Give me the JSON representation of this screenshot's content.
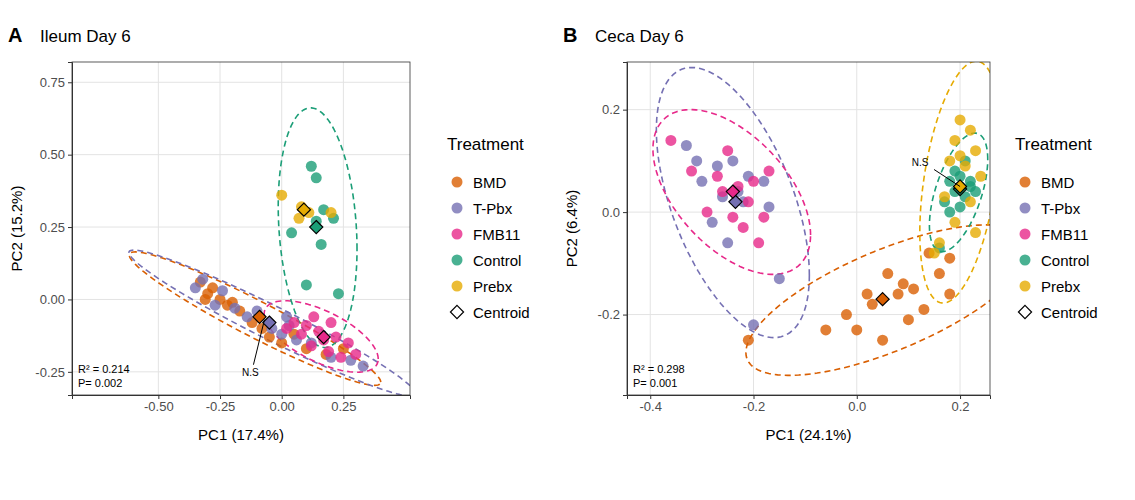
{
  "chart_data": [
    {
      "type": "scatter",
      "panel": "A",
      "title": "Ileum Day 6",
      "x_label": "PC1 (17.4%)",
      "y_label": "PC2 (15.2%)",
      "xlim": [
        -0.85,
        0.52
      ],
      "ylim": [
        -0.33,
        0.82
      ],
      "xticks": [
        {
          "value": -0.5,
          "label": "-0.50"
        },
        -0.25,
        {
          "value": 0,
          "label": "0.00"
        },
        0.25
      ],
      "yticks": [
        -0.25,
        {
          "value": 0,
          "label": "0.00"
        },
        0.25,
        {
          "value": 0.5,
          "label": "0.50"
        },
        0.75
      ],
      "grid": true,
      "legend_title": "Treatment",
      "series": [
        {
          "name": "BMD",
          "color": "#D95F02",
          "x": [
            -0.33,
            -0.3,
            -0.28,
            -0.25,
            -0.22,
            -0.2,
            -0.17,
            -0.12,
            -0.08,
            -0.05,
            0.0,
            0.05,
            0.1,
            0.18,
            0.25,
            -0.31
          ],
          "values": [
            0.06,
            0.02,
            0.04,
            0.0,
            -0.02,
            -0.01,
            -0.04,
            -0.08,
            -0.1,
            -0.13,
            -0.15,
            -0.12,
            -0.17,
            -0.19,
            -0.17,
            0.0
          ]
        },
        {
          "name": "T-Pbx",
          "color": "#7570B3",
          "x": [
            -0.35,
            -0.32,
            -0.27,
            -0.24,
            -0.19,
            -0.14,
            -0.1,
            -0.04,
            0.0,
            0.03,
            0.06,
            0.12,
            0.2,
            0.28,
            0.33,
            0.02
          ],
          "values": [
            0.04,
            0.07,
            -0.02,
            0.03,
            -0.03,
            -0.06,
            -0.04,
            -0.1,
            -0.12,
            -0.09,
            -0.14,
            -0.15,
            -0.2,
            -0.21,
            -0.23,
            -0.06
          ]
        },
        {
          "name": "FMB11",
          "color": "#E7298A",
          "x": [
            0.02,
            0.05,
            0.08,
            0.1,
            0.12,
            0.15,
            0.17,
            0.19,
            0.22,
            0.24,
            0.27,
            0.3,
            0.13,
            0.2
          ],
          "values": [
            -0.1,
            -0.08,
            -0.12,
            -0.09,
            -0.16,
            -0.11,
            -0.14,
            -0.18,
            -0.13,
            -0.2,
            -0.15,
            -0.19,
            -0.06,
            -0.08
          ]
        },
        {
          "name": "Control",
          "color": "#1B9E77",
          "x": [
            0.12,
            0.14,
            0.17,
            0.21,
            0.04,
            0.1,
            0.23,
            0.14,
            0.16
          ],
          "values": [
            0.46,
            0.42,
            0.31,
            0.28,
            0.23,
            0.05,
            0.02,
            0.27,
            0.19
          ]
        },
        {
          "name": "Prebx",
          "color": "#E6AB02",
          "x": [
            0.0,
            0.08,
            0.11,
            0.2,
            0.07
          ],
          "values": [
            0.36,
            0.32,
            0.3,
            0.3,
            0.28
          ]
        },
        {
          "name": "Centroid",
          "marker": "diamond",
          "colors": [
            "#D95F02",
            "#7570B3",
            "#E7298A",
            "#1B9E77",
            "#E6AB02"
          ],
          "x": [
            -0.09,
            -0.05,
            0.17,
            0.14,
            0.09
          ],
          "values": [
            -0.06,
            -0.08,
            -0.13,
            0.25,
            0.31
          ]
        }
      ],
      "annotations": [
        {
          "text": "N.S",
          "x": -0.07,
          "y": -0.07
        }
      ],
      "stats": [
        "R² = 0.214",
        "P= 0.002"
      ]
    },
    {
      "type": "scatter",
      "panel": "B",
      "title": "Ceca Day 6",
      "x_label": "PC1 (24.1%)",
      "y_label": "PC2 (6.4%)",
      "xlim": [
        -0.445,
        0.258
      ],
      "ylim": [
        -0.357,
        0.293
      ],
      "xticks": [
        -0.4,
        -0.2,
        {
          "value": 0,
          "label": "0.0"
        },
        0.2
      ],
      "yticks": [
        -0.2,
        {
          "value": 0,
          "label": "0.0"
        },
        0.2
      ],
      "grid": true,
      "legend_title": "Treatment",
      "series": [
        {
          "name": "BMD",
          "color": "#D95F02",
          "x": [
            -0.21,
            -0.06,
            -0.02,
            0.0,
            0.03,
            0.05,
            0.06,
            0.08,
            0.09,
            0.1,
            0.11,
            0.13,
            0.14,
            0.16,
            0.18,
            0.18,
            0.02
          ],
          "values": [
            -0.25,
            -0.23,
            -0.2,
            -0.23,
            -0.18,
            -0.25,
            -0.12,
            -0.16,
            -0.14,
            -0.21,
            -0.15,
            -0.19,
            -0.08,
            -0.12,
            -0.09,
            -0.16,
            -0.16
          ]
        },
        {
          "name": "T-Pbx",
          "color": "#7570B3",
          "x": [
            -0.33,
            -0.31,
            -0.3,
            -0.28,
            -0.27,
            -0.26,
            -0.25,
            -0.23,
            -0.22,
            -0.21,
            -0.2,
            -0.18,
            -0.17,
            -0.15,
            -0.24
          ],
          "values": [
            0.13,
            0.1,
            0.06,
            -0.02,
            0.09,
            0.03,
            -0.06,
            0.04,
            0.02,
            0.07,
            -0.22,
            0.06,
            0.01,
            -0.13,
            0.1
          ]
        },
        {
          "name": "FMB11",
          "color": "#E7298A",
          "x": [
            -0.36,
            -0.32,
            -0.29,
            -0.27,
            -0.25,
            -0.23,
            -0.21,
            -0.19,
            -0.18,
            -0.17,
            -0.22,
            -0.26,
            -0.2,
            -0.24
          ],
          "values": [
            0.14,
            0.08,
            0.0,
            0.07,
            0.12,
            0.05,
            0.02,
            -0.06,
            -0.01,
            0.08,
            -0.03,
            0.04,
            0.06,
            -0.01
          ]
        },
        {
          "name": "Control",
          "color": "#1B9E77",
          "x": [
            0.17,
            0.18,
            0.19,
            0.2,
            0.21,
            0.22,
            0.19,
            0.2,
            0.21,
            0.18,
            0.22,
            0.16,
            0.23,
            0.2
          ],
          "values": [
            0.02,
            0.06,
            0.04,
            0.07,
            0.03,
            0.05,
            0.08,
            0.01,
            0.1,
            0.0,
            0.06,
            -0.07,
            0.04,
            0.05
          ]
        },
        {
          "name": "Prebx",
          "color": "#E6AB02",
          "x": [
            0.2,
            0.22,
            0.19,
            0.23,
            0.18,
            0.21,
            0.24,
            0.17,
            0.22,
            0.19,
            0.16,
            0.23,
            0.2,
            0.15
          ],
          "values": [
            0.18,
            0.16,
            0.14,
            0.12,
            0.1,
            0.09,
            0.07,
            0.03,
            0.02,
            -0.02,
            -0.06,
            -0.04,
            0.11,
            -0.08
          ]
        },
        {
          "name": "Centroid",
          "marker": "diamond",
          "colors": [
            "#D95F02",
            "#7570B3",
            "#E7298A",
            "#1B9E77",
            "#E6AB02"
          ],
          "x": [
            0.05,
            -0.235,
            -0.24,
            0.2,
            0.2
          ],
          "values": [
            -0.17,
            0.02,
            0.04,
            0.045,
            0.05
          ]
        }
      ],
      "annotations": [
        {
          "text": "N.S",
          "x": 0.2,
          "y": 0.05
        }
      ],
      "stats": [
        "R² = 0.298",
        "P= 0.001"
      ]
    }
  ]
}
